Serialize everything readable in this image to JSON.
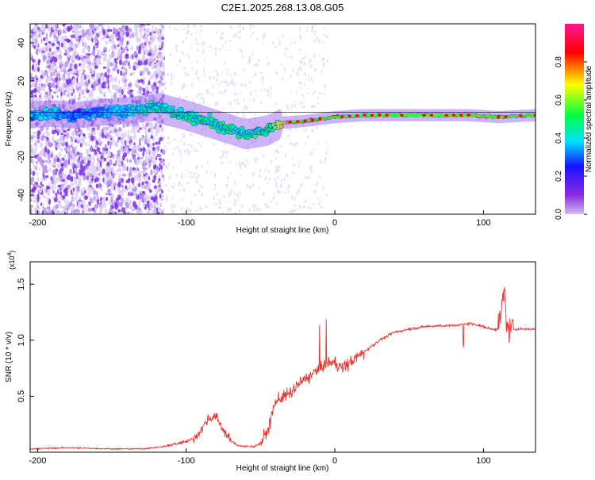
{
  "title": "C2E1.2025.268.13.08.G05",
  "colors": {
    "snr_line": "#e8332e",
    "axis": "#000000",
    "zero_line": "#000000",
    "colorbar_stops": [
      "#cfc0ee",
      "#8a2be2",
      "#1a10ff",
      "#00e0ff",
      "#00ff40",
      "#ffff00",
      "#ff0000",
      "#ff1493"
    ]
  },
  "chart_data": [
    {
      "type": "heatmap",
      "title": "C2E1.2025.268.13.08.G05",
      "xlabel": "Height of straight line (km)",
      "ylabel": "Frequency (Hz)",
      "xlim": [
        -205,
        135
      ],
      "ylim": [
        -50,
        50
      ],
      "x_ticks": [
        -200,
        -100,
        0,
        100
      ],
      "y_ticks": [
        -40,
        -20,
        0,
        20,
        40
      ],
      "colorbar": {
        "label": "Normalized spectral amplitude",
        "range": [
          0,
          1
        ],
        "ticks": [
          "0.0",
          "0.2",
          "0.4",
          "0.6",
          "0.8"
        ]
      },
      "signal_track": [
        {
          "x": -205,
          "y": 2,
          "amp": 0.35
        },
        {
          "x": -190,
          "y": 3,
          "amp": 0.4
        },
        {
          "x": -175,
          "y": 2,
          "amp": 0.3
        },
        {
          "x": -120,
          "y": 6,
          "amp": 0.45
        },
        {
          "x": -100,
          "y": 2,
          "amp": 0.45
        },
        {
          "x": -80,
          "y": -3,
          "amp": 0.45
        },
        {
          "x": -60,
          "y": -8,
          "amp": 0.45
        },
        {
          "x": -45,
          "y": -6,
          "amp": 0.5
        },
        {
          "x": -35,
          "y": -2,
          "amp": 0.7
        },
        {
          "x": -20,
          "y": -1,
          "amp": 0.85
        },
        {
          "x": 0,
          "y": 1,
          "amp": 0.85
        },
        {
          "x": 20,
          "y": 2,
          "amp": 0.6
        },
        {
          "x": 50,
          "y": 2,
          "amp": 0.6
        },
        {
          "x": 90,
          "y": 2,
          "amp": 0.75
        },
        {
          "x": 110,
          "y": 1,
          "amp": 0.8
        },
        {
          "x": 135,
          "y": 2,
          "amp": 0.8
        }
      ]
    },
    {
      "type": "line",
      "xlabel": "Height of straight line (km)",
      "ylabel": "SNR (10 * v/v)",
      "yscale_label": "(x10",
      "yscale_exp": "4",
      "xlim": [
        -205,
        135
      ],
      "ylim": [
        0,
        1.7
      ],
      "x_ticks": [
        -200,
        -100,
        0,
        100
      ],
      "y_ticks": [
        0.5,
        1.0,
        1.5
      ],
      "y_tick_labels": [
        "0.5",
        "1.0",
        "1.5"
      ],
      "series": [
        {
          "x": [
            -205,
            -180,
            -150,
            -130,
            -115,
            -105,
            -95,
            -90,
            -85,
            -80,
            -75,
            -70,
            -65,
            -60,
            -55,
            -50,
            -45,
            -40,
            -35,
            -30,
            -25,
            -20,
            -15,
            -10,
            -5,
            0,
            5,
            10,
            15,
            20,
            25,
            30,
            40,
            50,
            60,
            70,
            80,
            85,
            90,
            95,
            100,
            105,
            110,
            112,
            114,
            116,
            118,
            120,
            125,
            130,
            135
          ],
          "y": [
            0.03,
            0.04,
            0.03,
            0.03,
            0.05,
            0.08,
            0.12,
            0.2,
            0.3,
            0.32,
            0.2,
            0.1,
            0.06,
            0.05,
            0.05,
            0.08,
            0.2,
            0.45,
            0.5,
            0.52,
            0.6,
            0.65,
            0.7,
            0.75,
            0.8,
            0.8,
            0.75,
            0.8,
            0.85,
            0.9,
            0.95,
            1.0,
            1.07,
            1.1,
            1.12,
            1.13,
            1.13,
            1.14,
            1.15,
            1.14,
            1.12,
            1.1,
            1.1,
            1.25,
            1.45,
            1.1,
            1.08,
            1.1,
            1.1,
            1.1,
            1.1
          ]
        }
      ]
    }
  ]
}
